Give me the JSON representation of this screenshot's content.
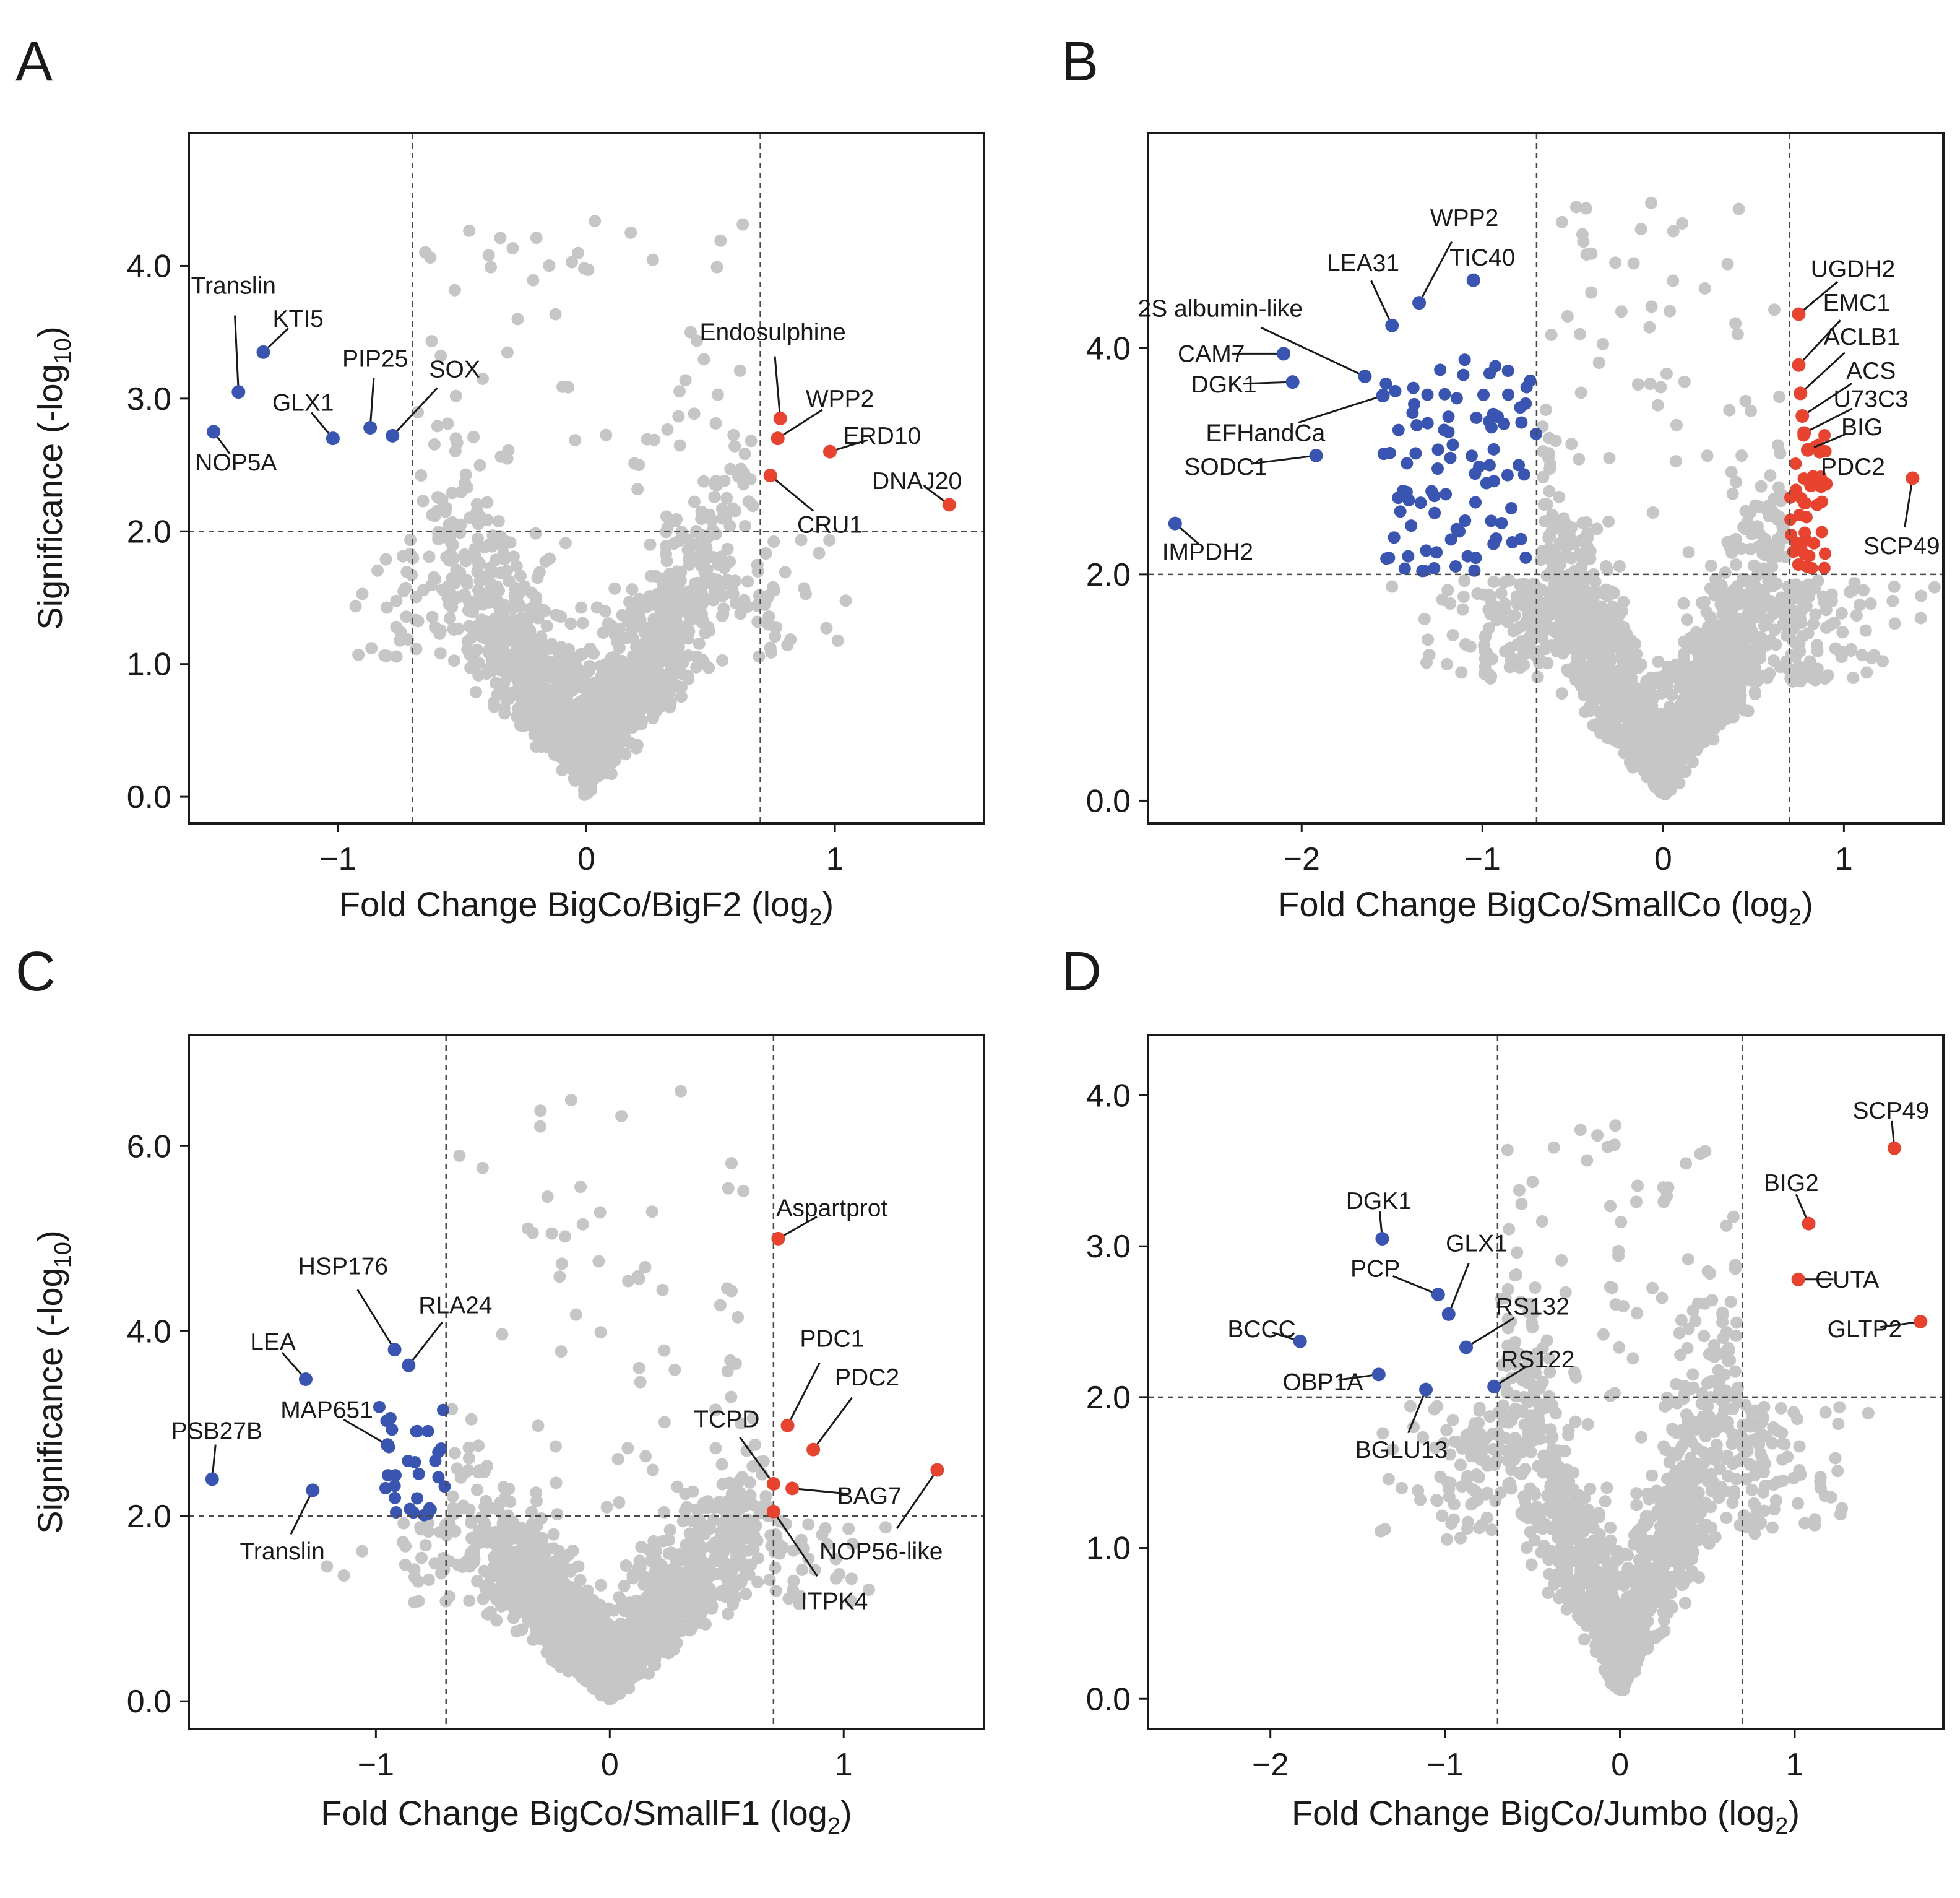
{
  "colors": {
    "up": "#e8432f",
    "down": "#3a55b1",
    "ns": "#c6c6c6"
  },
  "chart_data": [
    {
      "panel": "A",
      "type": "scatter",
      "xlabel": "Fold Change BigCo/BigF2 (log",
      "xlabel_sub": "2",
      "xlabel_end": ")",
      "ylabel": "Significance (-log",
      "ylabel_sub": "10",
      "ylabel_end": ")",
      "xlim": [
        -1.6,
        1.6
      ],
      "ylim": [
        -0.2,
        5.0
      ],
      "xticks": [
        -1,
        0,
        1
      ],
      "xtick_labels": [
        "−1",
        "0",
        "1"
      ],
      "yticks": [
        0,
        1,
        2,
        3,
        4
      ],
      "ytick_labels": [
        "0.0",
        "1.0",
        "2.0",
        "3.0",
        "4.0"
      ],
      "ref_x": [
        -0.7,
        0.7
      ],
      "ref_y": 2.0,
      "labeled_points": [
        {
          "label": "Translin",
          "x": -1.4,
          "y": 3.05,
          "color": "down",
          "lx": -1.42,
          "ly": 3.85,
          "anchor": "middle"
        },
        {
          "label": "KTI5",
          "x": -1.3,
          "y": 3.35,
          "color": "down",
          "lx": -1.16,
          "ly": 3.6,
          "anchor": "middle"
        },
        {
          "label": "NOP5A",
          "x": -1.5,
          "y": 2.75,
          "color": "down",
          "lx": -1.41,
          "ly": 2.52,
          "anchor": "middle"
        },
        {
          "label": "GLX1",
          "x": -1.02,
          "y": 2.7,
          "color": "down",
          "lx": -1.14,
          "ly": 2.97,
          "anchor": "middle"
        },
        {
          "label": "PIP25",
          "x": -0.87,
          "y": 2.78,
          "color": "down",
          "lx": -0.85,
          "ly": 3.3,
          "anchor": "middle"
        },
        {
          "label": "SOX",
          "x": -0.78,
          "y": 2.72,
          "color": "down",
          "lx": -0.53,
          "ly": 3.22,
          "anchor": "middle"
        },
        {
          "label": "Endosulphine",
          "x": 0.78,
          "y": 2.85,
          "color": "up",
          "lx": 0.75,
          "ly": 3.5,
          "anchor": "middle"
        },
        {
          "label": "WPP2",
          "x": 0.77,
          "y": 2.7,
          "color": "up",
          "lx": 1.02,
          "ly": 3.0,
          "anchor": "middle"
        },
        {
          "label": "ERD10",
          "x": 0.98,
          "y": 2.6,
          "color": "up",
          "lx": 1.19,
          "ly": 2.72,
          "anchor": "middle"
        },
        {
          "label": "DNAJ20",
          "x": 1.46,
          "y": 2.2,
          "color": "up",
          "lx": 1.33,
          "ly": 2.38,
          "anchor": "middle"
        },
        {
          "label": "CRU1",
          "x": 0.74,
          "y": 2.42,
          "color": "up",
          "lx": 0.98,
          "ly": 2.05,
          "anchor": "middle"
        }
      ],
      "ns_seed": 11,
      "ns_count": 1400
    },
    {
      "panel": "B",
      "type": "scatter",
      "xlabel": "Fold Change BigCo/SmallCo (log",
      "xlabel_sub": "2",
      "xlabel_end": ")",
      "xlim": [
        -2.85,
        1.55
      ],
      "ylim": [
        -0.2,
        5.9
      ],
      "xticks": [
        -2,
        -1,
        0,
        1
      ],
      "xtick_labels": [
        "−2",
        "−1",
        "0",
        "1"
      ],
      "yticks": [
        0,
        2,
        4
      ],
      "ytick_labels": [
        "0.0",
        "2.0",
        "4.0"
      ],
      "ref_x": [
        -0.7,
        0.7
      ],
      "ref_y": 2.0,
      "labeled_points": [
        {
          "label": "WPP2",
          "x": -1.35,
          "y": 4.4,
          "color": "down",
          "lx": -1.1,
          "ly": 5.15,
          "anchor": "middle"
        },
        {
          "label": "TIC40",
          "x": -1.05,
          "y": 4.6,
          "color": "down",
          "lx": -1.0,
          "ly": 4.8,
          "anchor": "middle"
        },
        {
          "label": "LEA31",
          "x": -1.5,
          "y": 4.2,
          "color": "down",
          "lx": -1.66,
          "ly": 4.75,
          "anchor": "middle"
        },
        {
          "label": "2S albumin-like",
          "x": -1.65,
          "y": 3.75,
          "color": "down",
          "lx": -2.45,
          "ly": 4.35,
          "anchor": "middle"
        },
        {
          "label": "CAM7",
          "x": -2.1,
          "y": 3.95,
          "color": "down",
          "lx": -2.5,
          "ly": 3.95,
          "anchor": "middle"
        },
        {
          "label": "DGK1",
          "x": -2.05,
          "y": 3.7,
          "color": "down",
          "lx": -2.43,
          "ly": 3.68,
          "anchor": "middle"
        },
        {
          "label": "EFHandCa",
          "x": -1.55,
          "y": 3.58,
          "color": "down",
          "lx": -2.2,
          "ly": 3.25,
          "anchor": "middle"
        },
        {
          "label": "SODC1",
          "x": -1.92,
          "y": 3.05,
          "color": "down",
          "lx": -2.42,
          "ly": 2.95,
          "anchor": "middle"
        },
        {
          "label": "IMPDH2",
          "x": -2.7,
          "y": 2.45,
          "color": "down",
          "lx": -2.52,
          "ly": 2.2,
          "anchor": "middle"
        },
        {
          "label": "UGDH2",
          "x": 0.75,
          "y": 4.3,
          "color": "up",
          "lx": 1.05,
          "ly": 4.7,
          "anchor": "middle"
        },
        {
          "label": "EMC1",
          "x": 0.75,
          "y": 3.85,
          "color": "up",
          "lx": 1.07,
          "ly": 4.4,
          "anchor": "middle"
        },
        {
          "label": "ACLB1",
          "x": 0.76,
          "y": 3.6,
          "color": "up",
          "lx": 1.1,
          "ly": 4.1,
          "anchor": "middle"
        },
        {
          "label": "ACS",
          "x": 0.77,
          "y": 3.4,
          "color": "up",
          "lx": 1.15,
          "ly": 3.8,
          "anchor": "middle"
        },
        {
          "label": "U73C3",
          "x": 0.78,
          "y": 3.25,
          "color": "up",
          "lx": 1.15,
          "ly": 3.55,
          "anchor": "middle"
        },
        {
          "label": "BIG",
          "x": 0.8,
          "y": 3.1,
          "color": "up",
          "lx": 1.1,
          "ly": 3.3,
          "anchor": "middle"
        },
        {
          "label": "PDC2",
          "x": 0.9,
          "y": 2.8,
          "color": "up",
          "lx": 1.05,
          "ly": 2.95,
          "anchor": "middle"
        },
        {
          "label": "SCP49",
          "x": 1.38,
          "y": 2.85,
          "color": "up",
          "lx": 1.32,
          "ly": 2.25,
          "anchor": "middle"
        }
      ],
      "down_extra": 90,
      "up_extra": 42,
      "ns_seed": 23,
      "ns_count": 1700
    },
    {
      "panel": "C",
      "type": "scatter",
      "xlabel": "Fold Change BigCo/SmallF1 (log",
      "xlabel_sub": "2",
      "xlabel_end": ")",
      "ylabel": "Significance (-log",
      "ylabel_sub": "10",
      "ylabel_end": ")",
      "xlim": [
        -1.8,
        1.6
      ],
      "ylim": [
        -0.3,
        7.2
      ],
      "xticks": [
        -1,
        0,
        1
      ],
      "xtick_labels": [
        "−1",
        "0",
        "1"
      ],
      "yticks": [
        0,
        2,
        4,
        6
      ],
      "ytick_labels": [
        "0.0",
        "2.0",
        "4.0",
        "6.0"
      ],
      "ref_x": [
        -0.7,
        0.7
      ],
      "ref_y": 2.0,
      "labeled_points": [
        {
          "label": "HSP176",
          "x": -0.92,
          "y": 3.8,
          "color": "down",
          "lx": -1.14,
          "ly": 4.7,
          "anchor": "middle"
        },
        {
          "label": "RLA24",
          "x": -0.86,
          "y": 3.63,
          "color": "down",
          "lx": -0.66,
          "ly": 4.28,
          "anchor": "middle"
        },
        {
          "label": "LEA",
          "x": -1.3,
          "y": 3.48,
          "color": "down",
          "lx": -1.44,
          "ly": 3.88,
          "anchor": "middle"
        },
        {
          "label": "MAP651",
          "x": -0.95,
          "y": 2.77,
          "color": "down",
          "lx": -1.21,
          "ly": 3.15,
          "anchor": "middle"
        },
        {
          "label": "PSB27B",
          "x": -1.7,
          "y": 2.4,
          "color": "down",
          "lx": -1.68,
          "ly": 2.92,
          "anchor": "middle"
        },
        {
          "label": "Translin",
          "x": -1.27,
          "y": 2.28,
          "color": "down",
          "lx": -1.4,
          "ly": 1.62,
          "anchor": "middle"
        },
        {
          "label": "Aspartprot",
          "x": 0.72,
          "y": 5.0,
          "color": "up",
          "lx": 0.95,
          "ly": 5.33,
          "anchor": "middle"
        },
        {
          "label": "PDC1",
          "x": 0.76,
          "y": 2.98,
          "color": "up",
          "lx": 0.95,
          "ly": 3.92,
          "anchor": "middle"
        },
        {
          "label": "PDC2",
          "x": 0.87,
          "y": 2.72,
          "color": "up",
          "lx": 1.1,
          "ly": 3.5,
          "anchor": "middle"
        },
        {
          "label": "TCPD",
          "x": 0.7,
          "y": 2.35,
          "color": "up",
          "lx": 0.5,
          "ly": 3.05,
          "anchor": "middle"
        },
        {
          "label": "BAG7",
          "x": 0.78,
          "y": 2.3,
          "color": "up",
          "lx": 1.11,
          "ly": 2.22,
          "anchor": "middle"
        },
        {
          "label": "NOP56-like",
          "x": 1.4,
          "y": 2.5,
          "color": "up",
          "lx": 1.16,
          "ly": 1.62,
          "anchor": "middle"
        },
        {
          "label": "ITPK4",
          "x": 0.7,
          "y": 2.05,
          "color": "up",
          "lx": 0.96,
          "ly": 1.08,
          "anchor": "middle"
        }
      ],
      "down_extra": 30,
      "ns_seed": 37,
      "ns_count": 1500
    },
    {
      "panel": "D",
      "type": "scatter",
      "xlabel": "Fold Change BigCo/Jumbo (log",
      "xlabel_sub": "2",
      "xlabel_end": ")",
      "xlim": [
        -2.7,
        1.85
      ],
      "ylim": [
        -0.2,
        4.4
      ],
      "xticks": [
        -2,
        -1,
        0,
        1
      ],
      "xtick_labels": [
        "−2",
        "−1",
        "0",
        "1"
      ],
      "yticks": [
        0,
        1,
        2,
        3,
        4
      ],
      "ytick_labels": [
        "0.0",
        "1.0",
        "2.0",
        "3.0",
        "4.0"
      ],
      "ref_x": [
        -0.7,
        0.7
      ],
      "ref_y": 2.0,
      "labeled_points": [
        {
          "label": "DGK1",
          "x": -1.36,
          "y": 3.05,
          "color": "down",
          "lx": -1.38,
          "ly": 3.3,
          "anchor": "middle"
        },
        {
          "label": "GLX1",
          "x": -0.98,
          "y": 2.55,
          "color": "down",
          "lx": -0.82,
          "ly": 3.02,
          "anchor": "middle"
        },
        {
          "label": "PCP",
          "x": -1.04,
          "y": 2.68,
          "color": "down",
          "lx": -1.4,
          "ly": 2.85,
          "anchor": "middle"
        },
        {
          "label": "RS132",
          "x": -0.88,
          "y": 2.33,
          "color": "down",
          "lx": -0.5,
          "ly": 2.6,
          "anchor": "middle"
        },
        {
          "label": "RS122",
          "x": -0.72,
          "y": 2.07,
          "color": "down",
          "lx": -0.47,
          "ly": 2.25,
          "anchor": "middle"
        },
        {
          "label": "BCCC",
          "x": -1.83,
          "y": 2.37,
          "color": "down",
          "lx": -2.05,
          "ly": 2.45,
          "anchor": "middle"
        },
        {
          "label": "OBP1A",
          "x": -1.38,
          "y": 2.15,
          "color": "down",
          "lx": -1.7,
          "ly": 2.1,
          "anchor": "middle"
        },
        {
          "label": "BGLU13",
          "x": -1.11,
          "y": 2.05,
          "color": "down",
          "lx": -1.25,
          "ly": 1.65,
          "anchor": "middle"
        },
        {
          "label": "SCP49",
          "x": 1.57,
          "y": 3.65,
          "color": "up",
          "lx": 1.55,
          "ly": 3.9,
          "anchor": "middle"
        },
        {
          "label": "BIG2",
          "x": 1.08,
          "y": 3.15,
          "color": "up",
          "lx": 0.98,
          "ly": 3.42,
          "anchor": "middle"
        },
        {
          "label": "CUTA",
          "x": 1.02,
          "y": 2.78,
          "color": "up",
          "lx": 1.3,
          "ly": 2.78,
          "anchor": "middle"
        },
        {
          "label": "GLTP2",
          "x": 1.72,
          "y": 2.5,
          "color": "up",
          "lx": 1.4,
          "ly": 2.45,
          "anchor": "middle"
        }
      ],
      "ns_seed": 53,
      "ns_count": 1200
    }
  ]
}
